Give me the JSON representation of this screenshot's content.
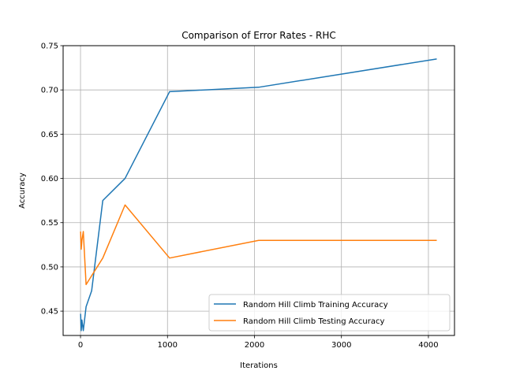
{
  "chart_data": {
    "type": "line",
    "title": "Comparison of Error Rates - RHC",
    "xlabel": "Iterations",
    "ylabel": "Accuracy",
    "xlim": [
      -200,
      4300
    ],
    "ylim": [
      0.4225,
      0.75
    ],
    "xticks": [
      0,
      1000,
      2000,
      3000,
      4000
    ],
    "yticks": [
      0.45,
      0.5,
      0.55,
      0.6,
      0.65,
      0.7,
      0.75
    ],
    "grid": true,
    "legend_position": "lower-right",
    "series": [
      {
        "name": "Random Hill Climb Training Accuracy",
        "color": "#1f77b4",
        "points": [
          [
            1,
            0.447
          ],
          [
            8,
            0.428
          ],
          [
            16,
            0.44
          ],
          [
            32,
            0.428
          ],
          [
            64,
            0.455
          ],
          [
            128,
            0.473
          ],
          [
            256,
            0.575
          ],
          [
            512,
            0.6
          ],
          [
            1024,
            0.698
          ],
          [
            2048,
            0.703
          ],
          [
            4096,
            0.735
          ]
        ]
      },
      {
        "name": "Random Hill Climb Testing Accuracy",
        "color": "#ff7f0e",
        "points": [
          [
            1,
            0.54
          ],
          [
            8,
            0.52
          ],
          [
            16,
            0.53
          ],
          [
            32,
            0.54
          ],
          [
            64,
            0.48
          ],
          [
            128,
            0.49
          ],
          [
            256,
            0.51
          ],
          [
            512,
            0.57
          ],
          [
            1024,
            0.51
          ],
          [
            2048,
            0.53
          ],
          [
            4096,
            0.53
          ]
        ]
      }
    ]
  }
}
